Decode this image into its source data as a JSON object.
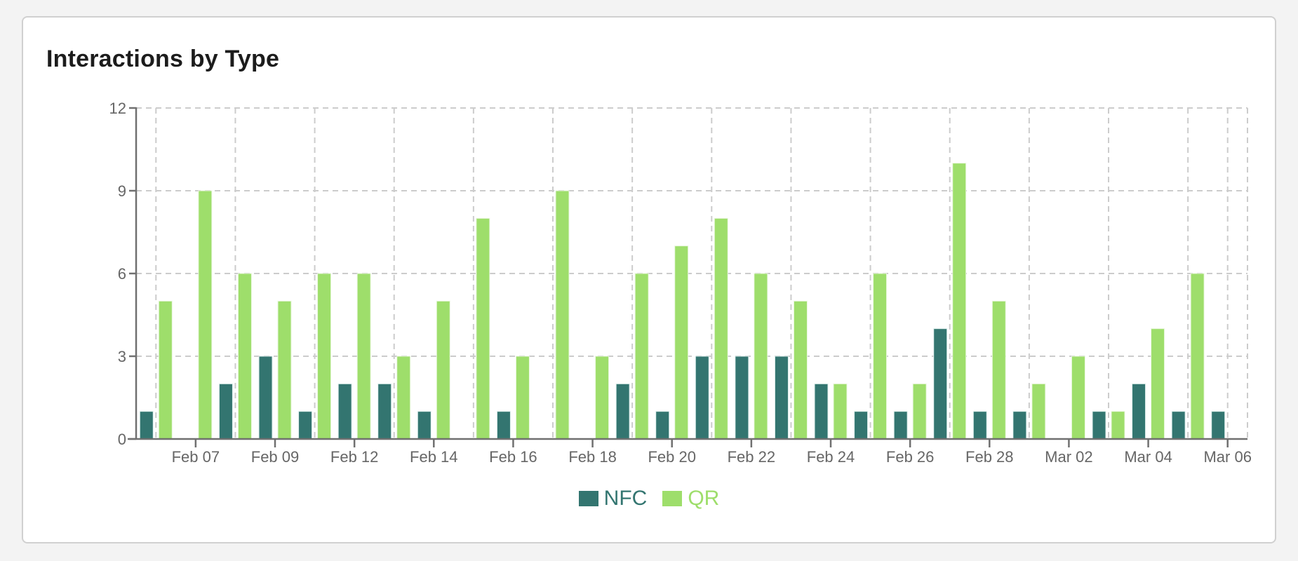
{
  "card": {
    "title": "Interactions by Type"
  },
  "legend": [
    {
      "label": "NFC",
      "color": "#337570"
    },
    {
      "label": "QR",
      "color": "#9ede6b"
    }
  ],
  "chart_data": {
    "type": "bar",
    "title": "Interactions by Type",
    "xlabel": "",
    "ylabel": "",
    "ylim": [
      0,
      12
    ],
    "yticks": [
      0,
      3,
      6,
      9,
      12
    ],
    "grid": true,
    "legend_position": "bottom",
    "x_tick_labels": [
      "Feb 07",
      "Feb 09",
      "Feb 12",
      "Feb 14",
      "Feb 16",
      "Feb 18",
      "Feb 20",
      "Feb 22",
      "Feb 24",
      "Feb 26",
      "Feb 28",
      "Mar 02",
      "Mar 04",
      "Mar 06"
    ],
    "x_tick_category_indices": [
      1,
      3,
      5,
      7,
      9,
      11,
      13,
      15,
      17,
      19,
      21,
      23,
      25,
      27
    ],
    "category_count": 28,
    "series": [
      {
        "name": "NFC",
        "color": "#337570",
        "values": [
          1,
          0,
          2,
          3,
          1,
          2,
          2,
          1,
          0,
          1,
          0,
          0,
          2,
          1,
          3,
          3,
          3,
          2,
          1,
          1,
          4,
          1,
          1,
          0,
          1,
          2,
          1,
          1
        ]
      },
      {
        "name": "QR",
        "color": "#9ede6b",
        "values": [
          5,
          9,
          6,
          5,
          6,
          6,
          3,
          5,
          8,
          3,
          9,
          3,
          6,
          7,
          8,
          6,
          5,
          2,
          6,
          2,
          10,
          5,
          2,
          3,
          1,
          4,
          6,
          0
        ]
      }
    ]
  }
}
